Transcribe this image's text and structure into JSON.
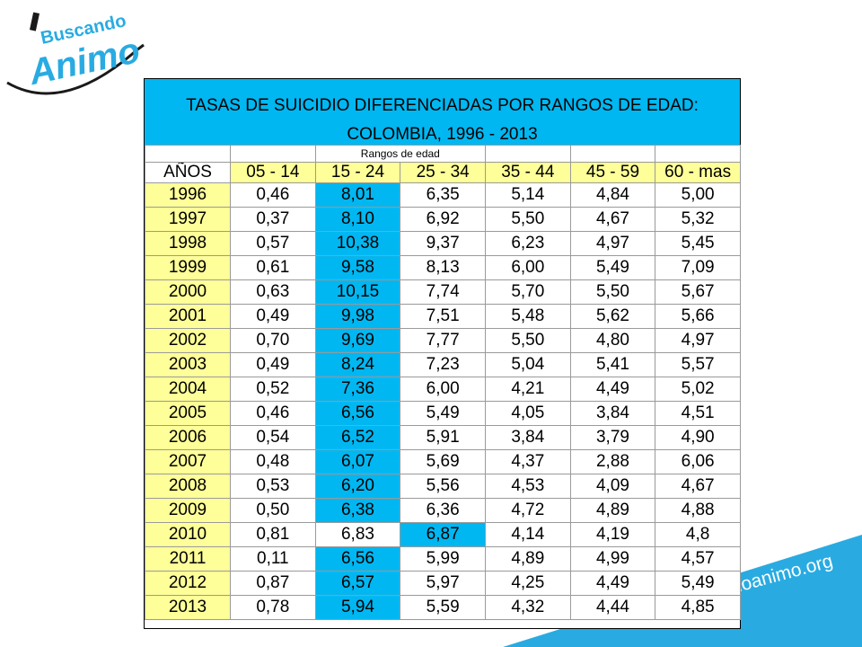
{
  "brand": {
    "word_small": "Buscando",
    "word_big": "Animo",
    "url": "ndoanimo.org",
    "color": "#29ABE2"
  },
  "table": {
    "title_line1": "TASAS DE SUICIDIO DIFERENCIADAS POR RANGOS DE EDAD:",
    "title_line2": "COLOMBIA, 1996 - 2013",
    "group_label": "Rangos de edad",
    "year_header": "AÑOS",
    "columns": [
      "05 - 14",
      "15 - 24",
      "25 - 34",
      "35 - 44",
      "45 - 59",
      "60 - mas"
    ],
    "header_color": "#FFFF99",
    "highlight_color": "#00B7F1",
    "rows": [
      {
        "year": "1996",
        "values": [
          "0,46",
          "8,01",
          "6,35",
          "5,14",
          "4,84",
          "5,00"
        ],
        "highlight": 1
      },
      {
        "year": "1997",
        "values": [
          "0,37",
          "8,10",
          "6,92",
          "5,50",
          "4,67",
          "5,32"
        ],
        "highlight": 1
      },
      {
        "year": "1998",
        "values": [
          "0,57",
          "10,38",
          "9,37",
          "6,23",
          "4,97",
          "5,45"
        ],
        "highlight": 1
      },
      {
        "year": "1999",
        "values": [
          "0,61",
          "9,58",
          "8,13",
          "6,00",
          "5,49",
          "7,09"
        ],
        "highlight": 1
      },
      {
        "year": "2000",
        "values": [
          "0,63",
          "10,15",
          "7,74",
          "5,70",
          "5,50",
          "5,67"
        ],
        "highlight": 1
      },
      {
        "year": "2001",
        "values": [
          "0,49",
          "9,98",
          "7,51",
          "5,48",
          "5,62",
          "5,66"
        ],
        "highlight": 1
      },
      {
        "year": "2002",
        "values": [
          "0,70",
          "9,69",
          "7,77",
          "5,50",
          "4,80",
          "4,97"
        ],
        "highlight": 1
      },
      {
        "year": "2003",
        "values": [
          "0,49",
          "8,24",
          "7,23",
          "5,04",
          "5,41",
          "5,57"
        ],
        "highlight": 1
      },
      {
        "year": "2004",
        "values": [
          "0,52",
          "7,36",
          "6,00",
          "4,21",
          "4,49",
          "5,02"
        ],
        "highlight": 1
      },
      {
        "year": "2005",
        "values": [
          "0,46",
          "6,56",
          "5,49",
          "4,05",
          "3,84",
          "4,51"
        ],
        "highlight": 1
      },
      {
        "year": "2006",
        "values": [
          "0,54",
          "6,52",
          "5,91",
          "3,84",
          "3,79",
          "4,90"
        ],
        "highlight": 1
      },
      {
        "year": "2007",
        "values": [
          "0,48",
          "6,07",
          "5,69",
          "4,37",
          "2,88",
          "6,06"
        ],
        "highlight": 1
      },
      {
        "year": "2008",
        "values": [
          "0,53",
          "6,20",
          "5,56",
          "4,53",
          "4,09",
          "4,67"
        ],
        "highlight": 1
      },
      {
        "year": "2009",
        "values": [
          "0,50",
          "6,38",
          "6,36",
          "4,72",
          "4,89",
          "4,88"
        ],
        "highlight": 1
      },
      {
        "year": "2010",
        "values": [
          "0,81",
          "6,83",
          "6,87",
          "4,14",
          "4,19",
          "4,8"
        ],
        "highlight": 2
      },
      {
        "year": "2011",
        "values": [
          "0,11",
          "6,56",
          "5,99",
          "4,89",
          "4,99",
          "4,57"
        ],
        "highlight": 1
      },
      {
        "year": "2012",
        "values": [
          "0,87",
          "6,57",
          "5,97",
          "4,25",
          "4,49",
          "5,49"
        ],
        "highlight": 1
      },
      {
        "year": "2013",
        "values": [
          "0,78",
          "5,94",
          "5,59",
          "4,32",
          "4,44",
          "4,85"
        ],
        "highlight": 1
      }
    ]
  }
}
